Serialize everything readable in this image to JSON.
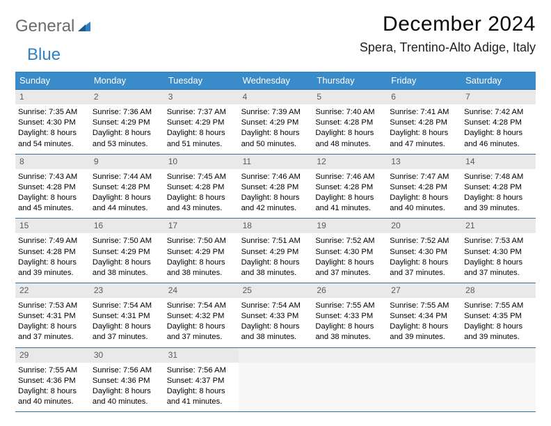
{
  "logo": {
    "general": "General",
    "blue": "Blue"
  },
  "title": "December 2024",
  "location": "Spera, Trentino-Alto Adige, Italy",
  "colors": {
    "header_bg": "#3a8bc9",
    "header_text": "#ffffff",
    "border": "#2f6fa5",
    "daynum_bg": "#e9e9e9",
    "daynum_text": "#5a5a5a",
    "logo_gray": "#6b6b6b",
    "logo_blue": "#2f80c4"
  },
  "dayHeaders": [
    "Sunday",
    "Monday",
    "Tuesday",
    "Wednesday",
    "Thursday",
    "Friday",
    "Saturday"
  ],
  "weeks": [
    [
      {
        "n": "1",
        "sr": "7:35 AM",
        "ss": "4:30 PM",
        "dh": "8",
        "dm": "54"
      },
      {
        "n": "2",
        "sr": "7:36 AM",
        "ss": "4:29 PM",
        "dh": "8",
        "dm": "53"
      },
      {
        "n": "3",
        "sr": "7:37 AM",
        "ss": "4:29 PM",
        "dh": "8",
        "dm": "51"
      },
      {
        "n": "4",
        "sr": "7:39 AM",
        "ss": "4:29 PM",
        "dh": "8",
        "dm": "50"
      },
      {
        "n": "5",
        "sr": "7:40 AM",
        "ss": "4:28 PM",
        "dh": "8",
        "dm": "48"
      },
      {
        "n": "6",
        "sr": "7:41 AM",
        "ss": "4:28 PM",
        "dh": "8",
        "dm": "47"
      },
      {
        "n": "7",
        "sr": "7:42 AM",
        "ss": "4:28 PM",
        "dh": "8",
        "dm": "46"
      }
    ],
    [
      {
        "n": "8",
        "sr": "7:43 AM",
        "ss": "4:28 PM",
        "dh": "8",
        "dm": "45"
      },
      {
        "n": "9",
        "sr": "7:44 AM",
        "ss": "4:28 PM",
        "dh": "8",
        "dm": "44"
      },
      {
        "n": "10",
        "sr": "7:45 AM",
        "ss": "4:28 PM",
        "dh": "8",
        "dm": "43"
      },
      {
        "n": "11",
        "sr": "7:46 AM",
        "ss": "4:28 PM",
        "dh": "8",
        "dm": "42"
      },
      {
        "n": "12",
        "sr": "7:46 AM",
        "ss": "4:28 PM",
        "dh": "8",
        "dm": "41"
      },
      {
        "n": "13",
        "sr": "7:47 AM",
        "ss": "4:28 PM",
        "dh": "8",
        "dm": "40"
      },
      {
        "n": "14",
        "sr": "7:48 AM",
        "ss": "4:28 PM",
        "dh": "8",
        "dm": "39"
      }
    ],
    [
      {
        "n": "15",
        "sr": "7:49 AM",
        "ss": "4:28 PM",
        "dh": "8",
        "dm": "39"
      },
      {
        "n": "16",
        "sr": "7:50 AM",
        "ss": "4:29 PM",
        "dh": "8",
        "dm": "38"
      },
      {
        "n": "17",
        "sr": "7:50 AM",
        "ss": "4:29 PM",
        "dh": "8",
        "dm": "38"
      },
      {
        "n": "18",
        "sr": "7:51 AM",
        "ss": "4:29 PM",
        "dh": "8",
        "dm": "38"
      },
      {
        "n": "19",
        "sr": "7:52 AM",
        "ss": "4:30 PM",
        "dh": "8",
        "dm": "37"
      },
      {
        "n": "20",
        "sr": "7:52 AM",
        "ss": "4:30 PM",
        "dh": "8",
        "dm": "37"
      },
      {
        "n": "21",
        "sr": "7:53 AM",
        "ss": "4:30 PM",
        "dh": "8",
        "dm": "37"
      }
    ],
    [
      {
        "n": "22",
        "sr": "7:53 AM",
        "ss": "4:31 PM",
        "dh": "8",
        "dm": "37"
      },
      {
        "n": "23",
        "sr": "7:54 AM",
        "ss": "4:31 PM",
        "dh": "8",
        "dm": "37"
      },
      {
        "n": "24",
        "sr": "7:54 AM",
        "ss": "4:32 PM",
        "dh": "8",
        "dm": "37"
      },
      {
        "n": "25",
        "sr": "7:54 AM",
        "ss": "4:33 PM",
        "dh": "8",
        "dm": "38"
      },
      {
        "n": "26",
        "sr": "7:55 AM",
        "ss": "4:33 PM",
        "dh": "8",
        "dm": "38"
      },
      {
        "n": "27",
        "sr": "7:55 AM",
        "ss": "4:34 PM",
        "dh": "8",
        "dm": "39"
      },
      {
        "n": "28",
        "sr": "7:55 AM",
        "ss": "4:35 PM",
        "dh": "8",
        "dm": "39"
      }
    ],
    [
      {
        "n": "29",
        "sr": "7:55 AM",
        "ss": "4:36 PM",
        "dh": "8",
        "dm": "40"
      },
      {
        "n": "30",
        "sr": "7:56 AM",
        "ss": "4:36 PM",
        "dh": "8",
        "dm": "40"
      },
      {
        "n": "31",
        "sr": "7:56 AM",
        "ss": "4:37 PM",
        "dh": "8",
        "dm": "41"
      },
      null,
      null,
      null,
      null
    ]
  ],
  "labels": {
    "sunrise": "Sunrise: ",
    "sunset": "Sunset: ",
    "daylight1": "Daylight: ",
    "daylight2": " hours",
    "daylight3": "and ",
    "daylight4": " minutes."
  }
}
